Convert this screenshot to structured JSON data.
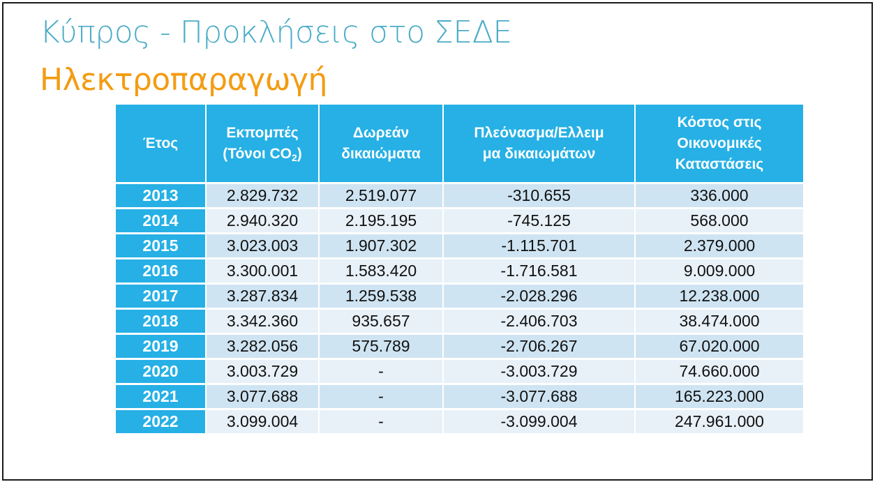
{
  "slide": {
    "title": "Κύπρος - Προκλήσεις στο ΣΕΔΕ",
    "subtitle": "Ηλεκτροπαραγωγή"
  },
  "table": {
    "headers": {
      "year": "Έτος",
      "emissions_line1": "Εκπομπές",
      "emissions_line2_prefix": "(Τόνοι CO",
      "emissions_line2_sub": "2",
      "emissions_line2_suffix": ")",
      "free_line1": "Δωρεάν",
      "free_line2": "δικαιώματα",
      "surplus_line1": "Πλεόνασμα/Ελλειμ",
      "surplus_line2": "μα δικαιωμάτων",
      "cost_line1": "Κόστος στις",
      "cost_line2": "Οικονομικές",
      "cost_line3": "Καταστάσεις"
    },
    "rows": [
      {
        "year": "2013",
        "emissions": "2.829.732",
        "free": "2.519.077",
        "surplus": "-310.655",
        "cost": "336.000"
      },
      {
        "year": "2014",
        "emissions": "2.940.320",
        "free": "2.195.195",
        "surplus": "-745.125",
        "cost": "568.000"
      },
      {
        "year": "2015",
        "emissions": "3.023.003",
        "free": "1.907.302",
        "surplus": "-1.115.701",
        "cost": "2.379.000"
      },
      {
        "year": "2016",
        "emissions": "3.300.001",
        "free": "1.583.420",
        "surplus": "-1.716.581",
        "cost": "9.009.000"
      },
      {
        "year": "2017",
        "emissions": "3.287.834",
        "free": "1.259.538",
        "surplus": "-2.028.296",
        "cost": "12.238.000"
      },
      {
        "year": "2018",
        "emissions": "3.342.360",
        "free": "935.657",
        "surplus": "-2.406.703",
        "cost": "38.474.000"
      },
      {
        "year": "2019",
        "emissions": "3.282.056",
        "free": "575.789",
        "surplus": "-2.706.267",
        "cost": "67.020.000"
      },
      {
        "year": "2020",
        "emissions": "3.003.729",
        "free": "-",
        "surplus": "-3.003.729",
        "cost": "74.660.000"
      },
      {
        "year": "2021",
        "emissions": "3.077.688",
        "free": "-",
        "surplus": "-3.077.688",
        "cost": "165.223.000"
      },
      {
        "year": "2022",
        "emissions": "3.099.004",
        "free": "-",
        "surplus": "-3.099.004",
        "cost": "247.961.000"
      }
    ]
  },
  "colors": {
    "title": "#4bacc6",
    "subtitle": "#f39c12",
    "header_bg": "#26b0e5",
    "row_odd": "#cfe4f2",
    "row_even": "#e8f1f8"
  }
}
